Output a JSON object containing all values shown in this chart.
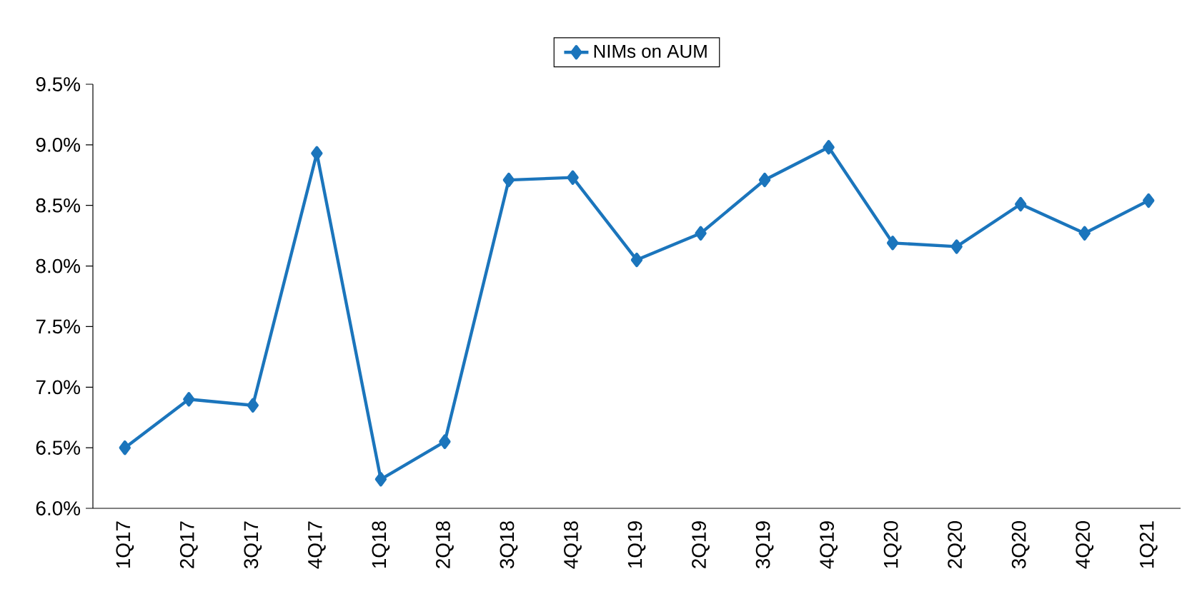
{
  "chart_data": {
    "type": "line",
    "categories": [
      "1Q17",
      "2Q17",
      "3Q17",
      "4Q17",
      "1Q18",
      "2Q18",
      "3Q18",
      "4Q18",
      "1Q19",
      "2Q19",
      "3Q19",
      "4Q19",
      "1Q20",
      "2Q20",
      "3Q20",
      "4Q20",
      "1Q21"
    ],
    "series": [
      {
        "name": "NIMs on AUM",
        "color": "#1b75bc",
        "values": [
          6.5,
          6.9,
          6.85,
          8.93,
          6.24,
          6.55,
          8.71,
          8.73,
          8.05,
          8.27,
          8.71,
          8.98,
          8.19,
          8.16,
          8.51,
          8.27,
          8.54
        ]
      }
    ],
    "ylim": [
      6.0,
      9.5
    ],
    "yticks": [
      {
        "value": 6.0,
        "label": "6.0%"
      },
      {
        "value": 6.5,
        "label": "6.5%"
      },
      {
        "value": 7.0,
        "label": "7.0%"
      },
      {
        "value": 7.5,
        "label": "7.5%"
      },
      {
        "value": 8.0,
        "label": "8.0%"
      },
      {
        "value": 8.5,
        "label": "8.5%"
      },
      {
        "value": 9.0,
        "label": "9.0%"
      },
      {
        "value": 9.5,
        "label": "9.5%"
      }
    ],
    "legend": "top",
    "marker": "diamond",
    "line_style": "solid"
  }
}
